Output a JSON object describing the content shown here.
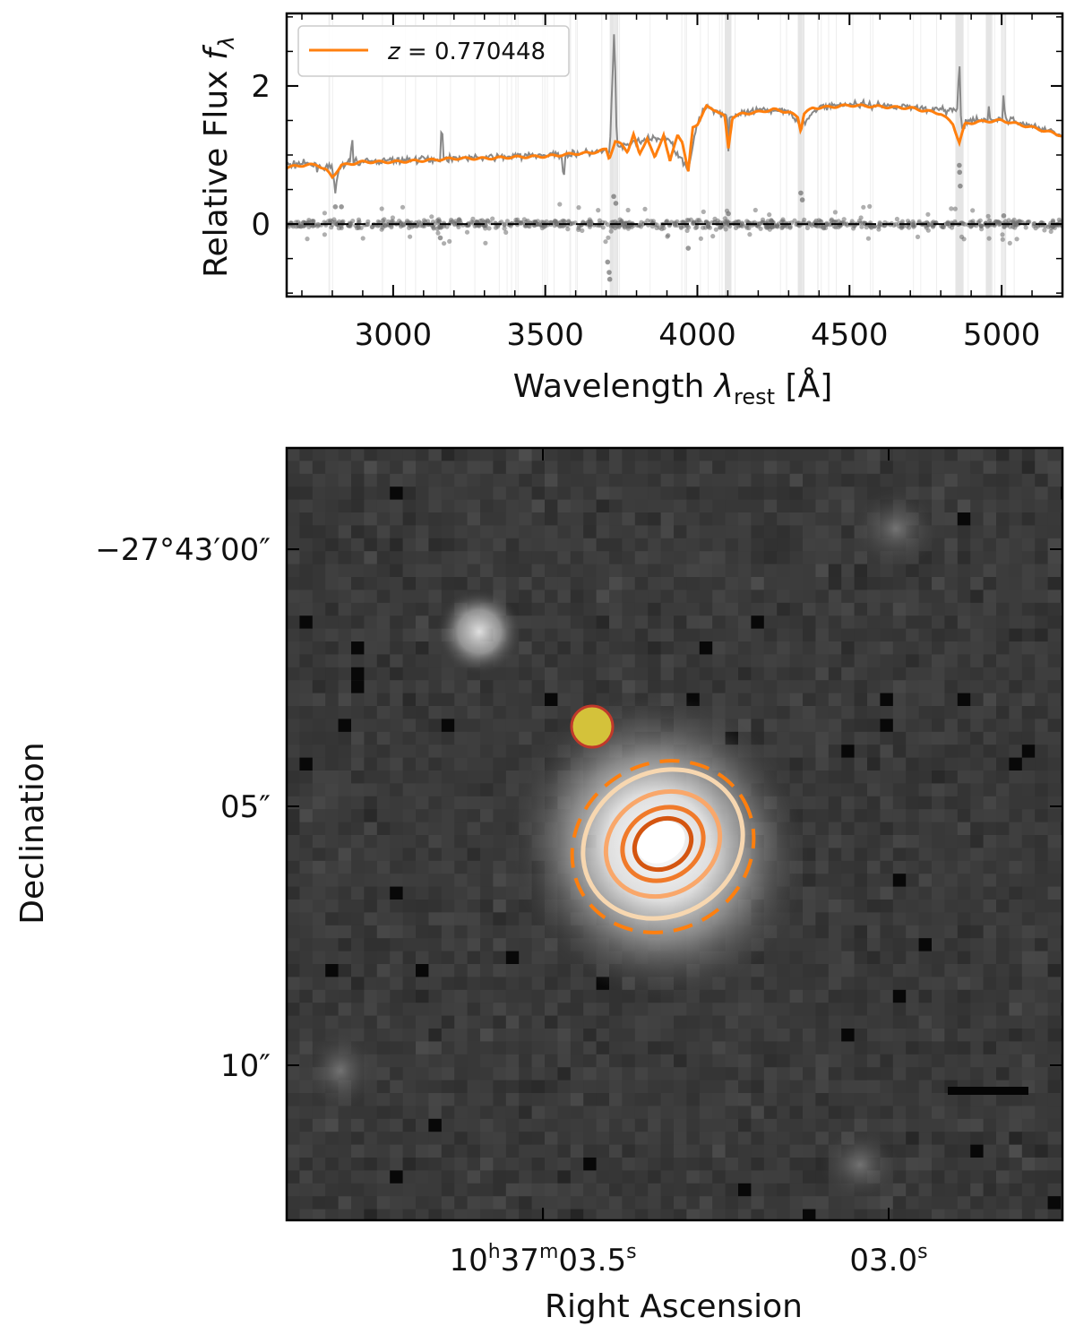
{
  "chart_data": [
    {
      "type": "line",
      "panel": "spectrum",
      "xlabel_main": "Wavelength ",
      "xlabel_lambda": "λ",
      "xlabel_sub": "rest",
      "xlabel_unit": " [Å]",
      "ylabel_main": "Relative Flux ",
      "ylabel_f": "f",
      "ylabel_sub": "λ",
      "xlim": [
        2650,
        5200
      ],
      "ylim": [
        -1.05,
        3.05
      ],
      "x_ticks": [
        3000,
        3500,
        4000,
        4500,
        5000
      ],
      "x_tick_labels": [
        "3000",
        "3500",
        "4000",
        "4500",
        "5000"
      ],
      "y_ticks": [
        0,
        2
      ],
      "y_tick_labels": [
        "0",
        "2"
      ],
      "legend_position": "top-left",
      "legend_label": "z = 0.770448",
      "legend_z": "z",
      "legend_value": " = 0.770448",
      "series": [
        {
          "role": "model",
          "color": "#ff7f0e",
          "x": [
            2650,
            2700,
            2750,
            2780,
            2800,
            2830,
            2900,
            3000,
            3100,
            3200,
            3300,
            3400,
            3500,
            3550,
            3600,
            3650,
            3700,
            3710,
            3730,
            3750,
            3770,
            3790,
            3810,
            3835,
            3860,
            3889,
            3910,
            3935,
            3950,
            3970,
            3985,
            4000,
            4030,
            4060,
            4090,
            4102,
            4115,
            4150,
            4200,
            4250,
            4300,
            4330,
            4340,
            4350,
            4380,
            4450,
            4500,
            4600,
            4700,
            4800,
            4840,
            4861,
            4880,
            4920,
            5000,
            5100,
            5200
          ],
          "y": [
            0.82,
            0.85,
            0.86,
            0.78,
            0.68,
            0.85,
            0.9,
            0.9,
            0.92,
            0.95,
            0.95,
            0.97,
            0.98,
            1.0,
            1.02,
            1.03,
            1.08,
            0.95,
            1.2,
            1.15,
            1.05,
            1.3,
            1.0,
            1.25,
            0.95,
            1.3,
            0.9,
            1.3,
            1.2,
            0.75,
            1.4,
            1.45,
            1.7,
            1.65,
            1.55,
            1.1,
            1.55,
            1.6,
            1.62,
            1.66,
            1.62,
            1.55,
            1.35,
            1.6,
            1.68,
            1.7,
            1.72,
            1.7,
            1.68,
            1.6,
            1.45,
            1.18,
            1.45,
            1.48,
            1.5,
            1.4,
            1.28
          ]
        },
        {
          "role": "observed",
          "color": "#888888",
          "x": [
            2650,
            2700,
            2750,
            2800,
            2810,
            2820,
            2860,
            2865,
            2870,
            2900,
            3000,
            3100,
            3155,
            3160,
            3165,
            3200,
            3300,
            3400,
            3500,
            3555,
            3560,
            3565,
            3600,
            3700,
            3712,
            3727,
            3735,
            3745,
            3800,
            3900,
            3970,
            4000,
            4030,
            4100,
            4102,
            4104,
            4200,
            4300,
            4340,
            4400,
            4500,
            4600,
            4700,
            4800,
            4855,
            4861,
            4867,
            4900,
            4955,
            4959,
            4963,
            5000,
            5003,
            5007,
            5011,
            5050,
            5100,
            5150,
            5200
          ],
          "y": [
            0.85,
            0.88,
            0.84,
            0.8,
            0.45,
            0.8,
            0.9,
            1.35,
            0.9,
            0.9,
            0.92,
            0.94,
            0.94,
            1.55,
            0.94,
            0.96,
            0.96,
            0.98,
            1.0,
            1.0,
            0.6,
            1.0,
            1.02,
            1.05,
            1.0,
            2.85,
            1.2,
            1.1,
            1.2,
            1.25,
            0.8,
            1.45,
            1.72,
            1.55,
            1.05,
            1.55,
            1.64,
            1.66,
            1.4,
            1.7,
            1.74,
            1.72,
            1.7,
            1.65,
            1.65,
            2.45,
            1.4,
            1.5,
            1.5,
            1.8,
            1.5,
            1.52,
            1.52,
            2.0,
            1.52,
            1.48,
            1.42,
            1.36,
            1.3
          ]
        }
      ]
    },
    {
      "type": "image",
      "panel": "cutout",
      "xlabel": "Right Ascension",
      "ylabel": "Declination",
      "x_tick_labels": [
        {
          "main": "10",
          "h": "h",
          "mid": "37",
          "m": "m",
          "sec": "03.5",
          "s": "s"
        },
        {
          "main": "03.0",
          "s": "s"
        }
      ],
      "y_tick_labels": [
        "−27°43′00″",
        "05″",
        "10″"
      ],
      "marker": {
        "fill": "#d4c23a",
        "edge": "#c0392b"
      },
      "contours": [
        {
          "level": 1,
          "color": "#f7d7b0"
        },
        {
          "level": 2,
          "color": "#f9a76a"
        },
        {
          "level": 3,
          "color": "#f07a2a"
        },
        {
          "level": 4,
          "color": "#d45510"
        }
      ],
      "aperture": {
        "color": "#ff7f0e",
        "style": "dashed"
      }
    }
  ]
}
